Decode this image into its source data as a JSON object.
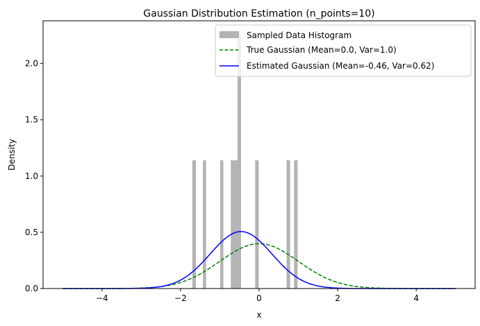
{
  "chart_data": {
    "type": "bar+line",
    "title": "Gaussian Distribution Estimation (n_points=10)",
    "xlabel": "x",
    "ylabel": "Density",
    "xlim": [
      -5.5,
      5.5
    ],
    "ylim": [
      0,
      2.38
    ],
    "xticks": [
      -4,
      -2,
      0,
      2,
      4
    ],
    "xtick_labels": [
      "−4",
      "−2",
      "0",
      "2",
      "4"
    ],
    "yticks": [
      0.0,
      0.5,
      1.0,
      1.5,
      2.0
    ],
    "ytick_labels": [
      "0.0",
      "0.5",
      "1.0",
      "1.5",
      "2.0"
    ],
    "grid": false,
    "legend_position": "upper-right",
    "histogram": {
      "name": "Sampled Data Histogram",
      "color": "#b3b3b3",
      "bins": [
        {
          "x0": -1.7,
          "x1": -1.61,
          "density": 1.14
        },
        {
          "x0": -1.43,
          "x1": -1.35,
          "density": 1.14
        },
        {
          "x0": -0.99,
          "x1": -0.91,
          "density": 1.14
        },
        {
          "x0": -0.72,
          "x1": -0.64,
          "density": 1.14
        },
        {
          "x0": -0.64,
          "x1": -0.55,
          "density": 1.14
        },
        {
          "x0": -0.55,
          "x1": -0.46,
          "density": 2.28
        },
        {
          "x0": -0.1,
          "x1": -0.01,
          "density": 1.14
        },
        {
          "x0": 0.7,
          "x1": 0.79,
          "density": 1.14
        },
        {
          "x0": 0.89,
          "x1": 0.98,
          "density": 1.14
        }
      ]
    },
    "series": [
      {
        "name": "True Gaussian (Mean=0.0, Var=1.0)",
        "kind": "pdf",
        "mean": 0.0,
        "var": 1.0,
        "x_range": [
          -5,
          5
        ],
        "color": "#008000",
        "style": "dashed"
      },
      {
        "name": "Estimated Gaussian (Mean=-0.46, Var=0.62)",
        "kind": "pdf",
        "mean": -0.46,
        "var": 0.62,
        "x_range": [
          -5,
          5
        ],
        "color": "#0000ff",
        "style": "solid"
      }
    ]
  }
}
